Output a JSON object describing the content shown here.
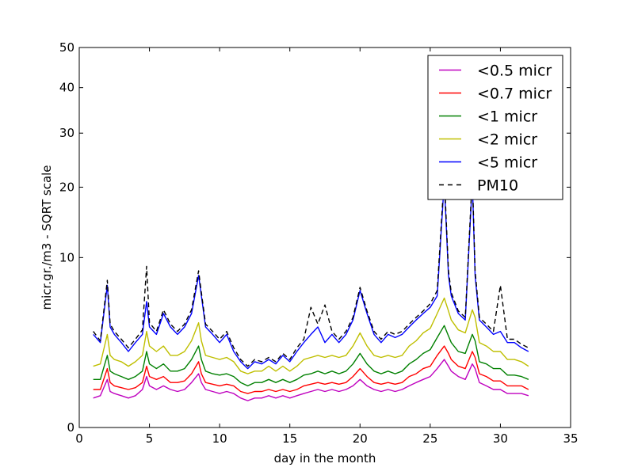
{
  "chart_data": {
    "type": "line",
    "title": "",
    "xlabel": "day in the month",
    "ylabel": "micr.gr./m3 - SQRT scale",
    "xlim": [
      0,
      35
    ],
    "ylim": [
      0,
      50
    ],
    "y_scale": "sqrt",
    "grid": false,
    "legend_position": "top-right",
    "x_ticks": [
      0,
      5,
      10,
      15,
      20,
      25,
      30,
      35
    ],
    "y_ticks": [
      0,
      10,
      20,
      30,
      40,
      50
    ],
    "x": [
      1.0,
      1.5,
      2.0,
      2.2,
      2.5,
      3.0,
      3.5,
      4.0,
      4.5,
      4.8,
      5.0,
      5.5,
      6.0,
      6.5,
      7.0,
      7.5,
      8.0,
      8.5,
      8.7,
      9.0,
      9.5,
      10.0,
      10.5,
      11.0,
      11.5,
      12.0,
      12.5,
      13.0,
      13.5,
      14.0,
      14.5,
      15.0,
      15.5,
      16.0,
      16.5,
      17.0,
      17.5,
      18.0,
      18.5,
      19.0,
      19.5,
      20.0,
      20.5,
      21.0,
      21.5,
      22.0,
      22.5,
      23.0,
      23.5,
      24.0,
      24.5,
      25.0,
      25.5,
      26.0,
      26.3,
      26.5,
      27.0,
      27.5,
      28.0,
      28.2,
      28.5,
      29.0,
      29.5,
      30.0,
      30.5,
      31.0,
      31.5,
      32.0
    ],
    "series": [
      {
        "name": "<0.5 micr",
        "color": "#bf00bf",
        "dash": false,
        "values": [
          0.3,
          0.35,
          0.8,
          0.45,
          0.4,
          0.35,
          0.3,
          0.35,
          0.5,
          0.9,
          0.6,
          0.5,
          0.6,
          0.5,
          0.45,
          0.5,
          0.7,
          1.0,
          0.7,
          0.5,
          0.45,
          0.4,
          0.45,
          0.4,
          0.3,
          0.25,
          0.3,
          0.3,
          0.35,
          0.3,
          0.35,
          0.3,
          0.35,
          0.4,
          0.45,
          0.5,
          0.45,
          0.5,
          0.45,
          0.5,
          0.6,
          0.8,
          0.6,
          0.5,
          0.45,
          0.5,
          0.45,
          0.5,
          0.6,
          0.7,
          0.8,
          0.9,
          1.2,
          1.6,
          1.3,
          1.1,
          0.9,
          0.8,
          1.4,
          1.2,
          0.7,
          0.6,
          0.5,
          0.5,
          0.4,
          0.4,
          0.4,
          0.35
        ]
      },
      {
        "name": "<0.7 micr",
        "color": "#ff0000",
        "dash": false,
        "values": [
          0.5,
          0.5,
          1.2,
          0.7,
          0.6,
          0.55,
          0.5,
          0.55,
          0.7,
          1.3,
          0.9,
          0.8,
          0.9,
          0.7,
          0.7,
          0.75,
          1.0,
          1.5,
          1.0,
          0.7,
          0.65,
          0.6,
          0.65,
          0.6,
          0.45,
          0.4,
          0.45,
          0.45,
          0.5,
          0.45,
          0.5,
          0.45,
          0.5,
          0.6,
          0.65,
          0.7,
          0.65,
          0.7,
          0.65,
          0.7,
          0.9,
          1.2,
          0.9,
          0.7,
          0.65,
          0.7,
          0.65,
          0.7,
          0.9,
          1.0,
          1.2,
          1.3,
          1.8,
          2.3,
          1.9,
          1.6,
          1.3,
          1.2,
          2.0,
          1.7,
          1.0,
          0.9,
          0.75,
          0.75,
          0.6,
          0.6,
          0.6,
          0.5
        ]
      },
      {
        "name": "<1 micr",
        "color": "#008000",
        "dash": false,
        "values": [
          0.8,
          0.8,
          1.8,
          1.1,
          1.0,
          0.9,
          0.8,
          0.9,
          1.1,
          2.0,
          1.4,
          1.2,
          1.4,
          1.1,
          1.1,
          1.2,
          1.6,
          2.3,
          1.6,
          1.1,
          1.0,
          0.95,
          1.0,
          0.9,
          0.7,
          0.6,
          0.7,
          0.7,
          0.8,
          0.7,
          0.8,
          0.7,
          0.8,
          0.95,
          1.0,
          1.1,
          1.0,
          1.1,
          1.0,
          1.1,
          1.4,
          1.9,
          1.4,
          1.1,
          1.0,
          1.1,
          1.0,
          1.1,
          1.4,
          1.6,
          1.9,
          2.1,
          2.8,
          3.6,
          2.9,
          2.5,
          2.0,
          1.9,
          3.0,
          2.6,
          1.5,
          1.4,
          1.2,
          1.2,
          0.95,
          0.95,
          0.9,
          0.8
        ]
      },
      {
        "name": "<2 micr",
        "color": "#bfbf00",
        "dash": false,
        "values": [
          1.3,
          1.4,
          3.0,
          1.8,
          1.6,
          1.5,
          1.3,
          1.5,
          1.8,
          3.2,
          2.3,
          2.0,
          2.3,
          1.8,
          1.8,
          2.0,
          2.6,
          3.8,
          2.6,
          1.8,
          1.7,
          1.6,
          1.7,
          1.5,
          1.1,
          1.0,
          1.1,
          1.1,
          1.3,
          1.1,
          1.3,
          1.1,
          1.3,
          1.6,
          1.7,
          1.8,
          1.7,
          1.8,
          1.7,
          1.8,
          2.3,
          3.1,
          2.3,
          1.8,
          1.7,
          1.8,
          1.7,
          1.8,
          2.3,
          2.6,
          3.1,
          3.4,
          4.5,
          5.8,
          4.7,
          4.0,
          3.3,
          3.1,
          4.8,
          4.2,
          2.5,
          2.3,
          2.0,
          2.0,
          1.6,
          1.6,
          1.5,
          1.3
        ]
      },
      {
        "name": "<5 micr",
        "color": "#0000ff",
        "dash": false,
        "values": [
          3.0,
          2.5,
          7.0,
          3.5,
          3.0,
          2.5,
          2.0,
          2.5,
          3.0,
          5.5,
          3.5,
          3.0,
          4.5,
          3.5,
          3.0,
          3.5,
          4.5,
          8.0,
          6.0,
          3.5,
          3.0,
          2.5,
          3.0,
          2.0,
          1.5,
          1.2,
          1.5,
          1.4,
          1.6,
          1.4,
          1.8,
          1.5,
          2.0,
          2.5,
          3.0,
          3.5,
          2.5,
          3.0,
          2.5,
          3.0,
          4.0,
          6.5,
          4.5,
          3.0,
          2.5,
          3.0,
          2.8,
          3.0,
          3.5,
          4.0,
          4.5,
          5.0,
          6.0,
          21.0,
          8.0,
          6.0,
          4.5,
          4.0,
          21.0,
          8.0,
          4.0,
          3.5,
          3.0,
          3.2,
          2.5,
          2.5,
          2.2,
          2.0
        ]
      },
      {
        "name": "PM10",
        "color": "#000000",
        "dash": true,
        "values": [
          3.2,
          2.6,
          7.5,
          3.7,
          3.2,
          2.7,
          2.2,
          2.7,
          3.3,
          9.0,
          3.8,
          3.2,
          4.8,
          3.7,
          3.2,
          3.7,
          4.8,
          8.5,
          6.3,
          3.7,
          3.2,
          2.7,
          3.2,
          2.2,
          1.6,
          1.3,
          1.6,
          1.5,
          1.7,
          1.5,
          1.9,
          1.6,
          2.2,
          2.7,
          5.0,
          3.7,
          5.2,
          3.2,
          2.7,
          3.2,
          4.2,
          6.8,
          4.7,
          3.2,
          2.7,
          3.2,
          3.0,
          3.2,
          3.7,
          4.2,
          4.7,
          5.3,
          6.5,
          22.0,
          8.5,
          6.3,
          4.7,
          4.2,
          22.0,
          8.5,
          4.2,
          3.7,
          3.2,
          7.0,
          2.7,
          2.7,
          2.4,
          2.2
        ]
      }
    ]
  }
}
